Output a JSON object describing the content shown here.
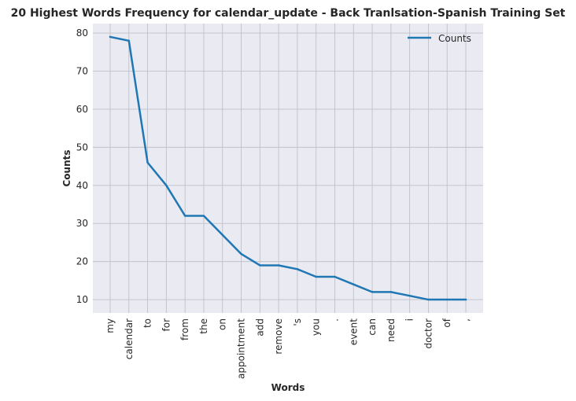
{
  "chart_data": {
    "type": "line",
    "title": "20 Highest Words Frequency for calendar_update - Back Tranlsation-Spanish Training Set",
    "xlabel": "Words",
    "ylabel": "Counts",
    "categories": [
      "my",
      "calendar",
      "to",
      "for",
      "from",
      "the",
      "on",
      "appointment",
      "add",
      "remove",
      "'s",
      "you",
      ".",
      "event",
      "can",
      "need",
      "i",
      "doctor",
      "of",
      ","
    ],
    "series": [
      {
        "name": "Counts",
        "values": [
          79,
          78,
          46,
          40,
          32,
          32,
          27,
          22,
          19,
          19,
          18,
          16,
          16,
          14,
          12,
          12,
          11,
          10,
          10,
          10
        ]
      }
    ],
    "ylim": [
      6.5,
      82.5
    ],
    "yticks": [
      10,
      20,
      30,
      40,
      50,
      60,
      70,
      80
    ],
    "grid": true,
    "legend": "top-right",
    "colors": {
      "line": "#1f77b4",
      "plot_bg": "#eaeaf2",
      "grid": "#c0c0c8"
    }
  }
}
